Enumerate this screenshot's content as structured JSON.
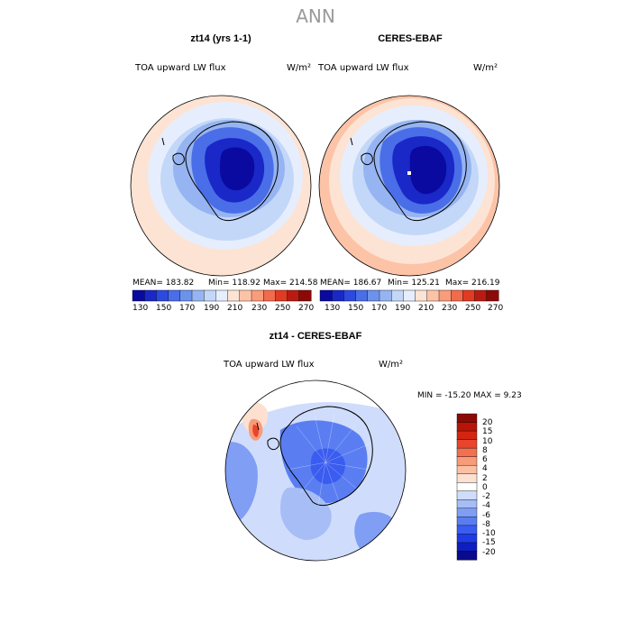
{
  "page": {
    "title": "ANN"
  },
  "colors": {
    "abs_scale": [
      "#0a0aa0",
      "#1a28c8",
      "#2d49e0",
      "#4a6ee8",
      "#6d92ec",
      "#96b4f2",
      "#c3d7f8",
      "#e6eefd",
      "#fde3d3",
      "#fcc3a7",
      "#f99c7b",
      "#f26b4d",
      "#e03b23",
      "#b91b12",
      "#8b0a07"
    ],
    "diff_scale": [
      "#0a0a8c",
      "#0f1ec0",
      "#1e3ce6",
      "#3a5cf0",
      "#5a7ef2",
      "#7f9ef4",
      "#a6bdf6",
      "#cfdcfb",
      "#ffffff",
      "#fde0d0",
      "#fbc0a4",
      "#f89b78",
      "#f2704f",
      "#e8452c",
      "#d42512",
      "#b81508",
      "#8c0a04"
    ]
  },
  "chart_data": [
    {
      "type": "heatmap",
      "panel": "left",
      "title": "zt14 (yrs 1-1)",
      "variable": "TOA upward LW flux",
      "units": "W/m²",
      "stats": {
        "mean": "MEAN= 183.82",
        "min": "Min= 118.92",
        "max": "Max= 214.58"
      },
      "colorbar_ticks": [
        "130",
        "150",
        "170",
        "190",
        "210",
        "230",
        "250",
        "270"
      ]
    },
    {
      "type": "heatmap",
      "panel": "right",
      "title": "CERES-EBAF",
      "variable": "TOA upward LW flux",
      "units": "W/m²",
      "stats": {
        "mean": "MEAN= 186.67",
        "min": "Min= 125.21",
        "max": "Max= 216.19"
      },
      "colorbar_ticks": [
        "130",
        "150",
        "170",
        "190",
        "210",
        "230",
        "250",
        "270"
      ]
    },
    {
      "type": "heatmap",
      "panel": "difference",
      "title": "zt14 - CERES-EBAF",
      "variable": "TOA upward LW flux",
      "units": "W/m²",
      "minmax": "MIN = -15.20 MAX =    9.23",
      "colorbar_ticks": [
        "20",
        "15",
        "10",
        "8",
        "6",
        "4",
        "2",
        "0",
        "-2",
        "-4",
        "-6",
        "-8",
        "-10",
        "-15",
        "-20"
      ]
    }
  ]
}
